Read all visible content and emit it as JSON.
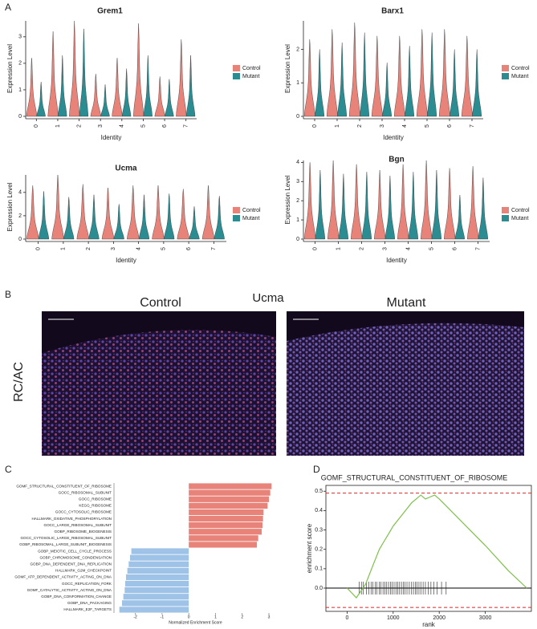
{
  "panels": {
    "labels": [
      "A",
      "B",
      "C",
      "D"
    ]
  },
  "microscopy": {
    "title": "Ucma",
    "left": "Control",
    "right": "Mutant",
    "row_label": "RC/AC"
  },
  "chart_data": [
    {
      "type": "violin",
      "title": "Grem1",
      "x_label": "Identity",
      "y_label": "Expression Level",
      "categories": [
        "0",
        "1",
        "2",
        "3",
        "4",
        "5",
        "6",
        "7"
      ],
      "series": [
        {
          "name": "Control",
          "color": "#e8837a",
          "values": [
            2.2,
            3.2,
            3.6,
            1.6,
            2.2,
            3.5,
            1.5,
            2.9
          ]
        },
        {
          "name": "Mutant",
          "color": "#2b8c91",
          "values": [
            1.3,
            2.3,
            3.3,
            1.2,
            1.8,
            2.3,
            1.4,
            2.3
          ]
        }
      ],
      "ylim": [
        0,
        3.6
      ],
      "yticks": [
        0,
        1,
        2,
        3
      ]
    },
    {
      "type": "violin",
      "title": "Barx1",
      "x_label": "Identity",
      "y_label": "Expression Level",
      "categories": [
        "0",
        "1",
        "2",
        "3",
        "4",
        "5",
        "6",
        "7"
      ],
      "series": [
        {
          "name": "Control",
          "color": "#e8837a",
          "values": [
            2.3,
            2.6,
            2.8,
            2.4,
            2.4,
            2.6,
            2.6,
            2.4
          ]
        },
        {
          "name": "Mutant",
          "color": "#2b8c91",
          "values": [
            2.0,
            2.2,
            2.5,
            1.6,
            2.1,
            2.5,
            2.0,
            2.0
          ]
        }
      ],
      "ylim": [
        0,
        2.85
      ],
      "yticks": [
        0,
        1,
        2
      ]
    },
    {
      "type": "violin",
      "title": "Ucma",
      "x_label": "Identity",
      "y_label": "Expression Level",
      "categories": [
        "0",
        "1",
        "2",
        "3",
        "4",
        "5",
        "6",
        "7"
      ],
      "series": [
        {
          "name": "Control",
          "color": "#e8837a",
          "values": [
            4.6,
            5.5,
            4.7,
            4.4,
            4.6,
            4.6,
            4.3,
            4.6
          ]
        },
        {
          "name": "Mutant",
          "color": "#2b8c91",
          "values": [
            4.1,
            3.6,
            3.8,
            3.0,
            3.8,
            3.9,
            2.8,
            3.7
          ]
        }
      ],
      "ylim": [
        0,
        5.5
      ],
      "yticks": [
        0,
        2,
        4
      ]
    },
    {
      "type": "violin",
      "title": "Bgn",
      "x_label": "Identity",
      "y_label": "Expression Level",
      "categories": [
        "0",
        "1",
        "2",
        "3",
        "4",
        "5",
        "6",
        "7"
      ],
      "series": [
        {
          "name": "Control",
          "color": "#e8837a",
          "values": [
            4.0,
            4.1,
            3.9,
            3.6,
            3.9,
            4.1,
            3.7,
            3.8
          ]
        },
        {
          "name": "Mutant",
          "color": "#2b8c91",
          "values": [
            3.6,
            3.4,
            3.5,
            3.3,
            3.5,
            3.6,
            2.3,
            3.2
          ]
        }
      ],
      "ylim": [
        0,
        4.1
      ],
      "yticks": [
        0,
        1,
        2,
        3,
        4
      ]
    },
    {
      "type": "hbar",
      "x_label": "Normalized Enrichment Score",
      "categories": [
        "GOMF_STRUCTURAL_CONSTITUENT_OF_RIBOSOME",
        "GOCC_RIBOSOMAL_SUBUNIT",
        "GOCC_RIBOSOME",
        "KEGG_RIBOSOME",
        "GOCC_CYTOSOLIC_RIBOSOME",
        "HALLMARK_OXIDATIVE_PHOSPHORYLATION",
        "GOCC_LARGE_RIBOSOMAL_SUBUNIT",
        "GOBP_RIBOSOME_BIOGENESIS",
        "GOCC_CYTOSOLIC_LARGE_RIBOSOMAL_SUBUNIT",
        "GOBP_RIBOSOMAL_LARGE_SUBUNIT_BIOGENESIS",
        "GOBP_MEIOTIC_CELL_CYCLE_PROCESS",
        "GOBP_CHROMOSOME_CONDENSATION",
        "GOBP_DNA_DEPENDENT_DNA_REPLICATION",
        "HALLMARK_G2M_CHECKPOINT",
        "GOMF_ATP_DEPENDENT_ACTIVITY_ACTING_ON_DNA",
        "GOCC_REPLICATION_FORK",
        "GOMF_CATALYTIC_ACTIVITY_ACTING_ON_DNA",
        "GOBP_DNA_CONFORMATION_CHANGE",
        "GOBP_DNA_PACKAGING",
        "HALLMARK_E2F_TARGETS"
      ],
      "values": [
        3.1,
        3.05,
        3.0,
        2.95,
        2.8,
        2.78,
        2.76,
        2.73,
        2.6,
        2.55,
        -2.15,
        -2.2,
        -2.25,
        -2.3,
        -2.35,
        -2.38,
        -2.4,
        -2.45,
        -2.5,
        -2.6
      ],
      "positive_color": "#e8837a",
      "negative_color": "#9fc3e7",
      "xlim": [
        -2.8,
        3.3
      ],
      "xticks": [
        -2,
        -1,
        0,
        1,
        2,
        3
      ]
    },
    {
      "type": "line",
      "title": "GOMF_STRUCTURAL_CONSTITUENT_OF_RIBOSOME",
      "x_label": "rank",
      "y_label": "enrichment score",
      "x": [
        0,
        200,
        400,
        500,
        600,
        700,
        800,
        900,
        1000,
        1100,
        1200,
        1300,
        1400,
        1500,
        1600,
        1700,
        1800,
        1900,
        2000,
        2500,
        3000,
        3500,
        3900
      ],
      "values": [
        0,
        -0.05,
        0.02,
        0.08,
        0.14,
        0.2,
        0.24,
        0.28,
        0.32,
        0.35,
        0.38,
        0.41,
        0.44,
        0.46,
        0.48,
        0.46,
        0.47,
        0.48,
        0.46,
        0.34,
        0.22,
        0.09,
        0
      ],
      "color": "#7cc04a",
      "hits": [
        260,
        310,
        350,
        420,
        470,
        520,
        560,
        610,
        650,
        700,
        730,
        780,
        820,
        860,
        900,
        940,
        980,
        1020,
        1060,
        1100,
        1140,
        1180,
        1220,
        1260,
        1300,
        1350,
        1400,
        1440,
        1480,
        1520,
        1560,
        1600,
        1650,
        1700,
        1760,
        1820,
        1880,
        1950,
        2050,
        2150
      ],
      "dashed_lines": [
        0.49,
        -0.1
      ],
      "dashed_color": "#d62728",
      "xlim": [
        -460,
        4000
      ],
      "xticks": [
        0,
        1000,
        2000,
        3000
      ],
      "ylim": [
        -0.12,
        0.53
      ],
      "yticks": [
        {
          "value": 0,
          "label": "0.0"
        },
        0.1,
        0.2,
        0.3,
        0.4,
        0.5
      ]
    }
  ]
}
